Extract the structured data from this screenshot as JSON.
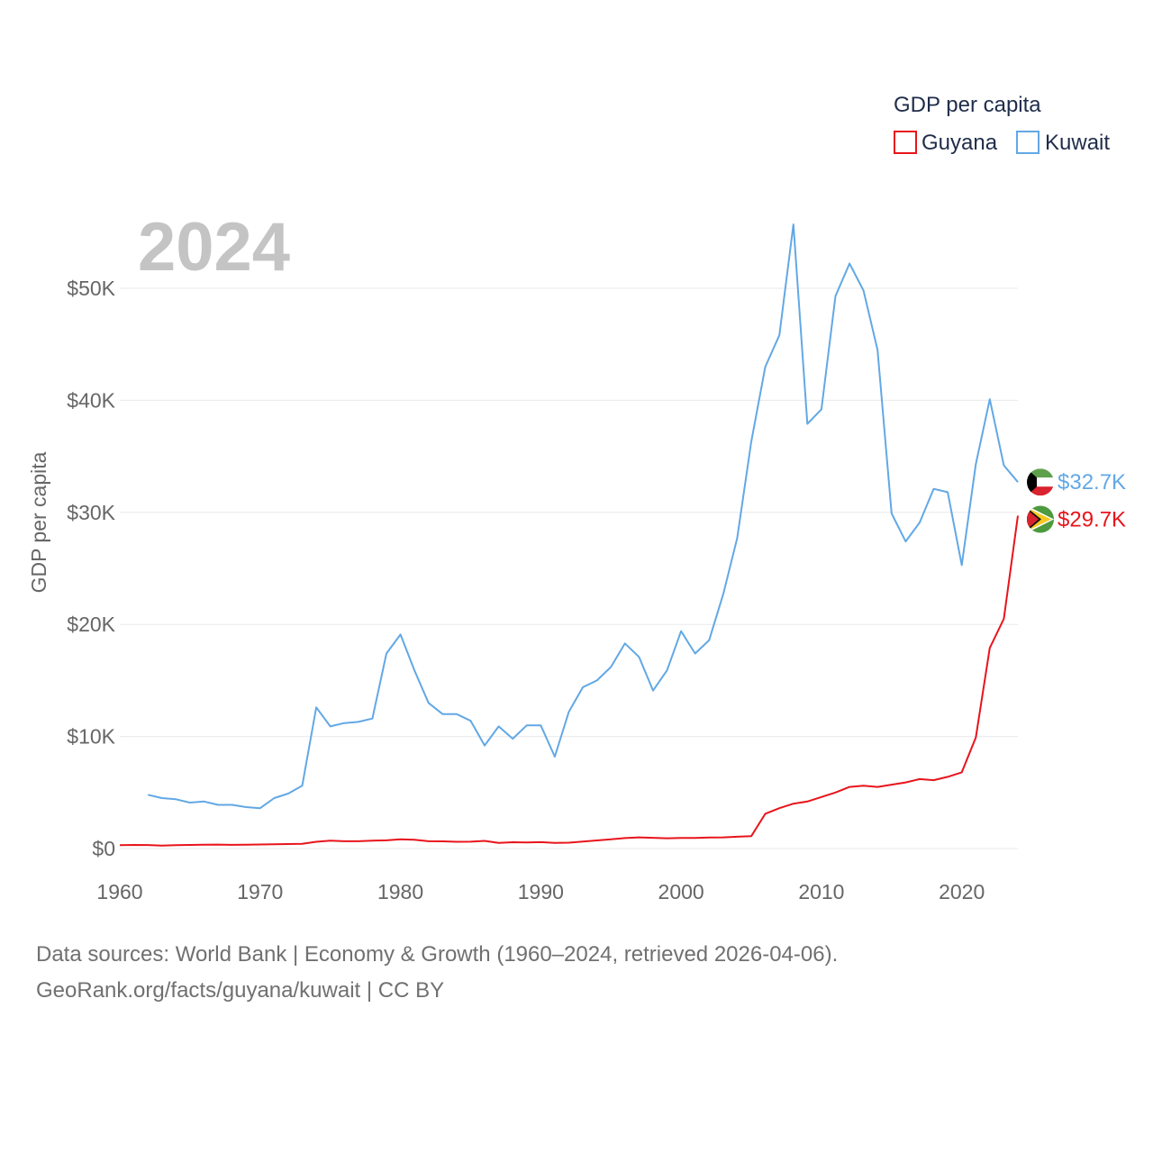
{
  "chart_data": {
    "type": "line",
    "year_label": "2024",
    "ylabel": "GDP per capita",
    "legend": {
      "title": "GDP per capita",
      "position": "top-right"
    },
    "xlim": [
      1960,
      2024
    ],
    "ylim": [
      0,
      55000
    ],
    "x_ticks": [
      "1960",
      "1970",
      "1980",
      "1990",
      "2000",
      "2010",
      "2020"
    ],
    "y_ticks": [
      {
        "value": 0,
        "label": "$0"
      },
      {
        "value": 10000,
        "label": "$10K"
      },
      {
        "value": 20000,
        "label": "$20K"
      },
      {
        "value": 30000,
        "label": "$30K"
      },
      {
        "value": 40000,
        "label": "$40K"
      },
      {
        "value": 50000,
        "label": "$50K"
      }
    ],
    "series": [
      {
        "name": "Guyana",
        "color": "#e8141b",
        "end_label": "$29.7K",
        "flag": "guyana-flag",
        "x": [
          1960,
          1961,
          1962,
          1963,
          1964,
          1965,
          1966,
          1967,
          1968,
          1969,
          1970,
          1971,
          1972,
          1973,
          1974,
          1975,
          1976,
          1977,
          1978,
          1979,
          1980,
          1981,
          1982,
          1983,
          1984,
          1985,
          1986,
          1987,
          1988,
          1989,
          1990,
          1991,
          1992,
          1993,
          1994,
          1995,
          1996,
          1997,
          1998,
          1999,
          2000,
          2001,
          2002,
          2003,
          2004,
          2005,
          2006,
          2007,
          2008,
          2009,
          2010,
          2011,
          2012,
          2013,
          2014,
          2015,
          2016,
          2017,
          2018,
          2019,
          2020,
          2021,
          2022,
          2023,
          2024
        ],
        "values": [
          300,
          320,
          310,
          260,
          300,
          320,
          340,
          350,
          330,
          340,
          360,
          380,
          400,
          420,
          600,
          700,
          650,
          650,
          700,
          730,
          830,
          780,
          650,
          640,
          600,
          610,
          680,
          500,
          560,
          540,
          570,
          500,
          520,
          620,
          720,
          820,
          930,
          1000,
          960,
          920,
          940,
          950,
          980,
          1000,
          1050,
          1100,
          3100,
          3600,
          4000,
          4200,
          4600,
          5000,
          5500,
          5600,
          5500,
          5700,
          5900,
          6200,
          6100,
          6400,
          6800,
          9900,
          17900,
          20500,
          29700
        ]
      },
      {
        "name": "Kuwait",
        "color": "#62a8e5",
        "end_label": "$32.7K",
        "flag": "kuwait-flag",
        "x": [
          1962,
          1963,
          1964,
          1965,
          1966,
          1967,
          1968,
          1969,
          1970,
          1971,
          1972,
          1973,
          1974,
          1975,
          1976,
          1977,
          1978,
          1979,
          1980,
          1981,
          1982,
          1983,
          1984,
          1985,
          1986,
          1987,
          1988,
          1989,
          1990,
          1991,
          1992,
          1993,
          1994,
          1995,
          1996,
          1997,
          1998,
          1999,
          2000,
          2001,
          2002,
          2003,
          2004,
          2005,
          2006,
          2007,
          2008,
          2009,
          2010,
          2011,
          2012,
          2013,
          2014,
          2015,
          2016,
          2017,
          2018,
          2019,
          2020,
          2021,
          2022,
          2023,
          2024
        ],
        "values": [
          4800,
          4500,
          4400,
          4100,
          4200,
          3900,
          3900,
          3700,
          3600,
          4500,
          4900,
          5600,
          12600,
          10900,
          11200,
          11300,
          11600,
          17400,
          19100,
          15900,
          13000,
          12000,
          12000,
          11400,
          9200,
          10900,
          9800,
          11000,
          11000,
          8200,
          12200,
          14400,
          15000,
          16200,
          18300,
          17100,
          14100,
          15900,
          19400,
          17400,
          18600,
          22700,
          27700,
          36300,
          43000,
          45800,
          55700,
          37900,
          39200,
          49300,
          52200,
          49800,
          44500,
          29900,
          27400,
          29100,
          32100,
          31800,
          25300,
          34300,
          40100,
          34200,
          32700
        ]
      }
    ]
  },
  "footer": {
    "line1": "Data sources: World Bank | Economy & Growth (1960–2024, retrieved 2026-04-06).",
    "line2": "GeoRank.org/facts/guyana/kuwait | CC BY"
  }
}
